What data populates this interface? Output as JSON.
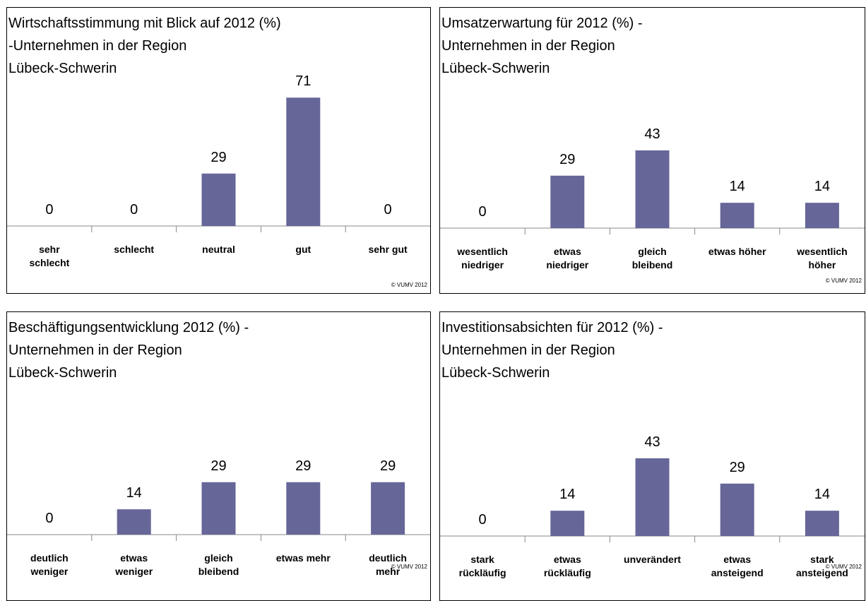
{
  "chart_data": [
    {
      "type": "bar",
      "title": "Wirtschaftsstimmung mit Blick auf 2012 (%)\n-Unternehmen in der Region\nLübeck-Schwerin",
      "categories": [
        "sehr\nschlecht",
        "schlecht",
        "neutral",
        "gut",
        "sehr gut"
      ],
      "values": [
        0,
        0,
        29,
        71,
        0
      ],
      "color": "#666699",
      "note": "© VUMV 2012"
    },
    {
      "type": "bar",
      "title": "Umsatzerwartung für 2012 (%) -\nUnternehmen in der Region\nLübeck-Schwerin",
      "categories": [
        "wesentlich\nniedriger",
        "etwas\nniedriger",
        "gleich\nbleibend",
        "etwas höher",
        "wesentlich\nhöher"
      ],
      "values": [
        0,
        29,
        43,
        14,
        14
      ],
      "color": "#666699",
      "note": "© VUMV 2012"
    },
    {
      "type": "bar",
      "title": "Beschäftigungsentwicklung  2012 (%) -\nUnternehmen in der Region\nLübeck-Schwerin",
      "categories": [
        "deutlich\nweniger",
        "etwas\nweniger",
        "gleich\nbleibend",
        "etwas mehr",
        "deutlich\nmehr"
      ],
      "values": [
        0,
        14,
        29,
        29,
        29
      ],
      "color": "#666699",
      "note": "© VUMV 2012"
    },
    {
      "type": "bar",
      "title": "Investitionsabsichten für 2012 (%) -\nUnternehmen in der Region\nLübeck-Schwerin",
      "categories": [
        "stark\nrückläufig",
        "etwas\nrückläufig",
        "unverändert",
        "etwas\nansteigend",
        "stark\nansteigend"
      ],
      "values": [
        0,
        14,
        43,
        29,
        14
      ],
      "color": "#666699",
      "note": "© VUMV 2012"
    }
  ]
}
